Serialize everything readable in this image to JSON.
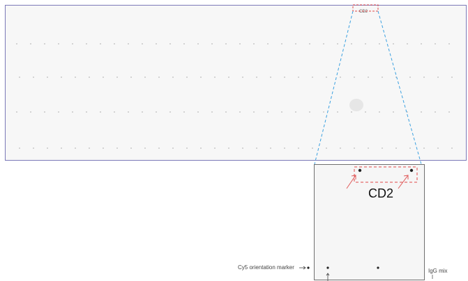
{
  "labels": {
    "top_target": "CD2",
    "zoom_target": "CD2",
    "orientation_marker": "Cy5 orientation marker",
    "igg_mix": "IgG mix"
  },
  "colors": {
    "strip_border": "#7b79b8",
    "zoom_lines": "#3aa0e0",
    "highlight_box": "#e04848",
    "arrow": "#e05a5a",
    "spot": "#222222"
  }
}
